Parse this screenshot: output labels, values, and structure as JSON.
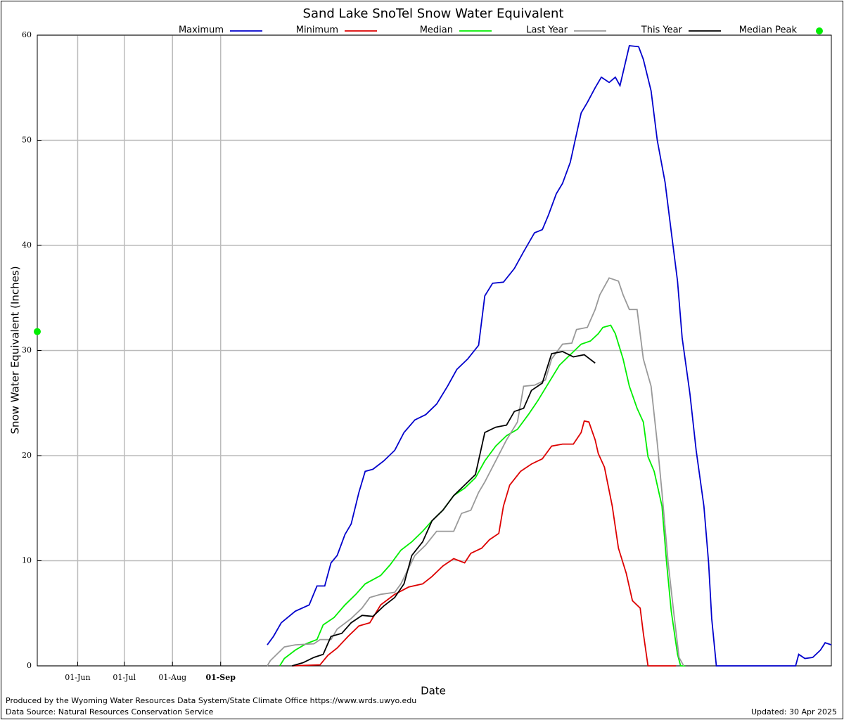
{
  "chart_data": {
    "type": "line",
    "title": "Sand Lake SnoTel Snow Water Equivalent",
    "x_label": "Date",
    "y_label": "Snow Water Equivalent (Inches)",
    "footer_left": [
      "Produced by the Wyoming Water Resources Data System/State Climate Office https://www.wrds.uwyo.edu",
      "Data Source: Natural Resources Conservation Service"
    ],
    "footer_right": "Updated: 30 Apr 2025",
    "xlim": [
      0,
      511
    ],
    "xticks": [
      {
        "value": 26,
        "label": "01-Jun"
      },
      {
        "value": 56,
        "label": "01-Jul"
      },
      {
        "value": 87,
        "label": "01-Aug"
      },
      {
        "value": 118,
        "label": "01-Sep"
      }
    ],
    "ylim": [
      0,
      60
    ],
    "yticks": [
      0,
      10,
      20,
      30,
      40,
      50,
      60
    ],
    "grid": true,
    "series": [
      {
        "name": "Maximum",
        "color": "#0000cc",
        "x": [
          148,
          152,
          157,
          166,
          175,
          180,
          185,
          189,
          193,
          198,
          202,
          207,
          211,
          216,
          223,
          230,
          236,
          243,
          250,
          257,
          264,
          270,
          277,
          284,
          288,
          293,
          300,
          307,
          313,
          320,
          325,
          329,
          334,
          338,
          343,
          350,
          354,
          359,
          363,
          368,
          372,
          375,
          381,
          387,
          390,
          395,
          399,
          404,
          408,
          412,
          415,
          420,
          424,
          429,
          432,
          434,
          437,
          488,
          490,
          494,
          499,
          504,
          507,
          511
        ],
        "values": [
          2.0,
          2.8,
          4.1,
          5.2,
          5.8,
          7.6,
          7.6,
          9.8,
          10.5,
          12.5,
          13.5,
          16.5,
          18.5,
          18.7,
          19.5,
          20.5,
          22.2,
          23.4,
          23.9,
          24.9,
          26.6,
          28.2,
          29.2,
          30.5,
          35.2,
          36.4,
          36.5,
          37.8,
          39.4,
          41.2,
          41.5,
          42.9,
          44.9,
          45.9,
          47.9,
          52.6,
          53.6,
          55.0,
          56.0,
          55.5,
          56.0,
          55.2,
          59.0,
          58.9,
          57.7,
          54.7,
          50.0,
          46.0,
          41.3,
          36.6,
          31.2,
          25.9,
          20.5,
          15.2,
          9.8,
          4.5,
          0,
          0,
          1.1,
          0.7,
          0.8,
          1.5,
          2.2,
          2.0
        ]
      },
      {
        "name": "Minimum",
        "color": "#dd0000",
        "x": [
          164,
          182,
          187,
          193,
          200,
          207,
          214,
          221,
          230,
          239,
          248,
          254,
          261,
          268,
          275,
          279,
          286,
          291,
          297,
          300,
          304,
          311,
          318,
          325,
          331,
          338,
          345,
          350,
          352,
          355,
          359,
          361,
          365,
          370,
          374,
          379,
          383,
          388,
          390,
          393,
          411
        ],
        "values": [
          0,
          0.1,
          1.0,
          1.7,
          2.8,
          3.8,
          4.1,
          5.8,
          6.8,
          7.5,
          7.8,
          8.5,
          9.5,
          10.2,
          9.8,
          10.7,
          11.2,
          12.0,
          12.6,
          15.2,
          17.2,
          18.5,
          19.2,
          19.7,
          20.9,
          21.1,
          21.1,
          22.2,
          23.3,
          23.2,
          21.5,
          20.2,
          18.9,
          15.2,
          11.2,
          8.8,
          6.2,
          5.5,
          3.1,
          0,
          0
        ]
      },
      {
        "name": "Median",
        "color": "#00ee00",
        "x": [
          156,
          159,
          166,
          173,
          180,
          184,
          191,
          198,
          205,
          211,
          221,
          227,
          234,
          241,
          248,
          254,
          261,
          268,
          275,
          282,
          288,
          295,
          302,
          309,
          316,
          322,
          329,
          336,
          343,
          350,
          356,
          361,
          364,
          369,
          372,
          377,
          381,
          386,
          390,
          393,
          397,
          402,
          405,
          408,
          412,
          414,
          417
        ],
        "values": [
          0,
          0.7,
          1.5,
          2.1,
          2.5,
          3.9,
          4.6,
          5.8,
          6.8,
          7.8,
          8.6,
          9.6,
          11.0,
          11.8,
          12.8,
          13.8,
          14.8,
          16.2,
          16.9,
          17.9,
          19.5,
          20.9,
          21.9,
          22.5,
          23.9,
          25.2,
          26.9,
          28.6,
          29.6,
          30.6,
          30.9,
          31.6,
          32.2,
          32.4,
          31.6,
          29.2,
          26.6,
          24.5,
          23.2,
          19.9,
          18.5,
          15.2,
          9.8,
          5.2,
          1.1,
          0,
          0
        ]
      },
      {
        "name": "Last Year",
        "color": "#999999",
        "x": [
          148,
          150,
          159,
          166,
          178,
          182,
          189,
          193,
          202,
          209,
          214,
          221,
          230,
          234,
          243,
          250,
          257,
          268,
          273,
          279,
          284,
          288,
          295,
          302,
          309,
          313,
          320,
          327,
          331,
          338,
          344,
          347,
          354,
          359,
          362,
          368,
          374,
          377,
          381,
          386,
          390,
          395,
          399,
          402,
          406,
          410,
          413,
          416
        ],
        "values": [
          0,
          0.5,
          1.8,
          2.0,
          2.1,
          2.5,
          2.5,
          3.5,
          4.5,
          5.5,
          6.5,
          6.8,
          7.0,
          7.8,
          10.5,
          11.5,
          12.8,
          12.8,
          14.5,
          14.8,
          16.5,
          17.5,
          19.5,
          21.5,
          23.2,
          26.6,
          26.7,
          27.2,
          29.2,
          30.6,
          30.7,
          32.0,
          32.2,
          33.9,
          35.3,
          36.9,
          36.6,
          35.3,
          33.9,
          33.9,
          29.2,
          26.6,
          21.2,
          16.5,
          9.8,
          4.5,
          0.8,
          0
        ]
      },
      {
        "name": "This Year",
        "color": "#000000",
        "x": [
          164,
          171,
          178,
          184,
          189,
          196,
          202,
          209,
          216,
          223,
          230,
          236,
          241,
          248,
          254,
          261,
          268,
          275,
          282,
          288,
          295,
          302,
          307,
          313,
          318,
          325,
          331,
          338,
          345,
          352,
          359
        ],
        "values": [
          0,
          0.3,
          0.8,
          1.1,
          2.8,
          3.1,
          4.1,
          4.8,
          4.7,
          5.7,
          6.5,
          7.8,
          10.5,
          11.8,
          13.8,
          14.8,
          16.2,
          17.2,
          18.2,
          22.2,
          22.7,
          22.9,
          24.2,
          24.5,
          26.2,
          26.9,
          29.7,
          29.9,
          29.4,
          29.6,
          28.8
        ]
      },
      {
        "name": "Median Peak",
        "color": "#00ee00",
        "marker": "dot",
        "x": [
          0
        ],
        "values": [
          31.8
        ]
      }
    ]
  }
}
